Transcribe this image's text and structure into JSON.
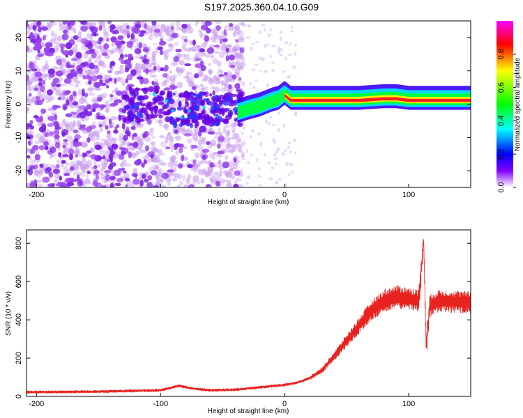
{
  "title": "S197.2025.360.04.10.G09",
  "chart_data": [
    {
      "type": "heatmap",
      "xlabel": "Height of straight line (km)",
      "ylabel": "Frequency (Hz)",
      "xlim": [
        -208,
        150
      ],
      "ylim": [
        -25,
        25
      ],
      "xticks": [
        -200,
        -100,
        0,
        100
      ],
      "yticks": [
        -20,
        -10,
        0,
        10,
        20
      ],
      "colorbar": {
        "label": "Normalized spectral amplitude",
        "range": [
          0,
          1
        ],
        "ticks": [
          0.0,
          0.2,
          0.4,
          0.6,
          0.8
        ],
        "colormap": [
          "#ff00ff",
          "#ff0000",
          "#ffff00",
          "#00ff00",
          "#00ffff",
          "#0000ff",
          "#8000ff",
          "#ffffff"
        ]
      },
      "ridge": {
        "x": [
          -38,
          -30,
          -20,
          -10,
          -5,
          0,
          5,
          20,
          40,
          60,
          80,
          90,
          100,
          110,
          120,
          150
        ],
        "frequency": [
          -3,
          -2,
          -1,
          0.5,
          1,
          2.5,
          1,
          1,
          1,
          1,
          1.5,
          1.5,
          1,
          1,
          1,
          1
        ]
      }
    },
    {
      "type": "line",
      "xlabel": "Height of straight line (km)",
      "ylabel": "SNR (10 * v/v)",
      "xlim": [
        -208,
        150
      ],
      "ylim": [
        0,
        870
      ],
      "xticks": [
        -200,
        -100,
        0,
        100
      ],
      "yticks": [
        0,
        200,
        400,
        600,
        800
      ],
      "color": "#e8231f",
      "series": [
        {
          "x": [
            -208,
            -150,
            -100,
            -85,
            -75,
            -60,
            -40,
            -20,
            0,
            10,
            20,
            30,
            40,
            50,
            60,
            70,
            80,
            90,
            100,
            108,
            111,
            112,
            114,
            117,
            125,
            150
          ],
          "y": [
            22,
            25,
            32,
            55,
            42,
            32,
            35,
            48,
            60,
            72,
            95,
            135,
            210,
            290,
            370,
            450,
            500,
            520,
            510,
            500,
            700,
            850,
            260,
            480,
            500,
            490
          ]
        }
      ]
    }
  ]
}
